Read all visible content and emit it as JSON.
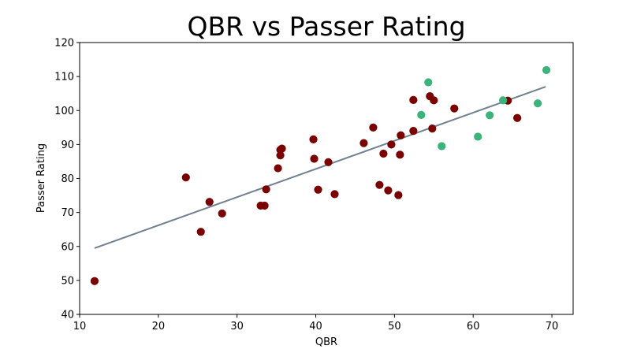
{
  "chart_data": {
    "type": "scatter",
    "title": "QBR vs Passer Rating",
    "xlabel": "QBR",
    "ylabel": "Passer Rating",
    "xlim": [
      10,
      72.7
    ],
    "ylim": [
      40,
      120
    ],
    "xticks": [
      10,
      20,
      30,
      40,
      50,
      60,
      70
    ],
    "yticks": [
      40,
      50,
      60,
      70,
      80,
      90,
      100,
      110,
      120
    ],
    "grid": false,
    "legend": "none",
    "colors": {
      "red_points": "#7b0000",
      "green_points": "#3cb37a",
      "trend_line": "#6f8090"
    },
    "trend_line": {
      "x": [
        11.9,
        69.2
      ],
      "y": [
        59.5,
        107.0
      ]
    },
    "series": [
      {
        "points": [
          [
            11.9,
            49.8
          ],
          [
            23.5,
            80.3
          ],
          [
            25.4,
            64.3
          ],
          [
            26.5,
            73.1
          ],
          [
            28.1,
            69.7
          ],
          [
            33.0,
            72.0
          ],
          [
            33.5,
            72.0
          ],
          [
            33.7,
            76.8
          ],
          [
            35.2,
            83.0
          ],
          [
            35.5,
            88.4
          ],
          [
            35.7,
            88.8
          ],
          [
            35.5,
            86.8
          ],
          [
            39.7,
            91.5
          ],
          [
            39.8,
            85.8
          ],
          [
            40.3,
            76.7
          ],
          [
            41.6,
            84.8
          ],
          [
            42.4,
            75.4
          ],
          [
            46.1,
            90.4
          ],
          [
            47.3,
            95.0
          ],
          [
            48.1,
            78.1
          ],
          [
            48.6,
            87.3
          ],
          [
            49.2,
            76.5
          ],
          [
            49.6,
            90.0
          ],
          [
            50.5,
            75.1
          ],
          [
            50.7,
            87.0
          ],
          [
            50.8,
            92.7
          ],
          [
            52.4,
            103.1
          ],
          [
            52.4,
            94.0
          ],
          [
            54.5,
            104.2
          ],
          [
            54.8,
            94.7
          ],
          [
            55.0,
            103.0
          ],
          [
            57.6,
            100.6
          ],
          [
            64.4,
            102.9
          ],
          [
            65.6,
            97.8
          ]
        ]
      },
      {
        "points": [
          [
            53.4,
            98.7
          ],
          [
            54.3,
            108.3
          ],
          [
            56.0,
            89.5
          ],
          [
            60.6,
            92.3
          ],
          [
            62.1,
            98.6
          ],
          [
            63.8,
            103.0
          ],
          [
            68.2,
            102.1
          ],
          [
            69.3,
            111.9
          ]
        ]
      }
    ]
  }
}
